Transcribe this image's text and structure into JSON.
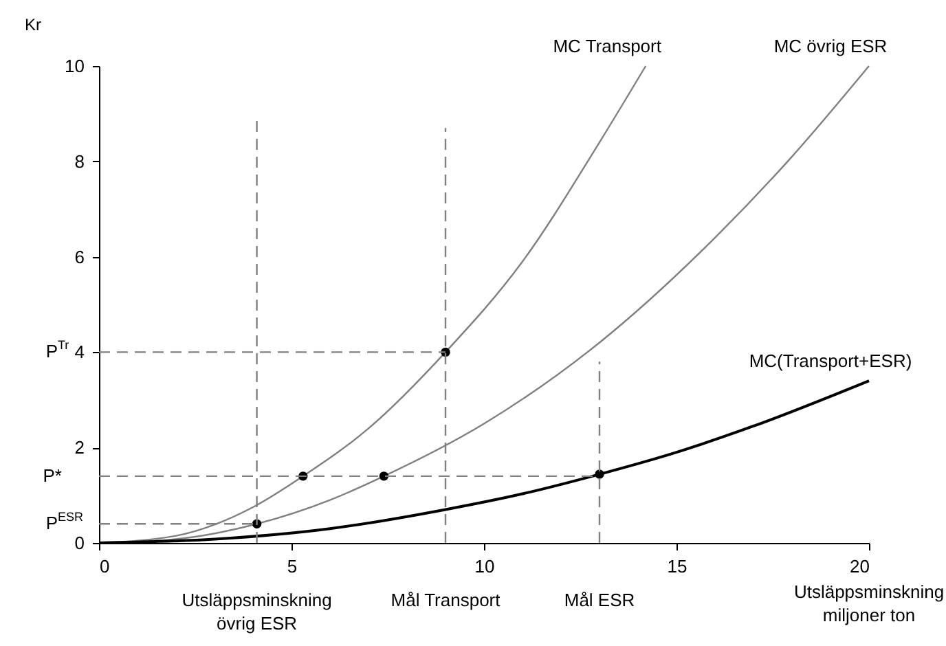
{
  "chart_data": {
    "type": "line",
    "xlabel": "Utsläppsminskning\nmiljoner ton",
    "ylabel": "Kr",
    "xlim": [
      0,
      20
    ],
    "ylim": [
      0,
      10
    ],
    "xticks": [
      0,
      5,
      10,
      15,
      20
    ],
    "yticks": [
      0,
      2,
      4,
      6,
      8,
      10
    ],
    "grid": false,
    "series": [
      {
        "name": "MC Transport",
        "color": "#808080",
        "marker": "none",
        "x": [
          0,
          2,
          4,
          5.3,
          7,
          9,
          11,
          13,
          14.2
        ],
        "values": [
          0,
          0.15,
          0.75,
          1.4,
          2.4,
          4,
          5.9,
          8.4,
          10
        ]
      },
      {
        "name": "MC övrig ESR",
        "color": "#808080",
        "marker": "none",
        "x": [
          0,
          2,
          4.1,
          6,
          7.4,
          10,
          13,
          16,
          18,
          20
        ],
        "values": [
          0,
          0.08,
          0.4,
          0.9,
          1.4,
          2.5,
          4.2,
          6.4,
          8.1,
          10
        ]
      },
      {
        "name": "MC(Transport+ESR)",
        "color": "#000000",
        "marker": "none",
        "x": [
          0,
          3,
          6,
          9,
          11,
          13,
          15,
          17,
          20
        ],
        "values": [
          0,
          0.08,
          0.3,
          0.7,
          1.03,
          1.44,
          1.9,
          2.45,
          3.4
        ]
      },
      {
        "type": "scatter",
        "color": "#000000",
        "marker": "circle",
        "x": [
          4.1,
          5.3,
          7.4,
          9,
          13
        ],
        "values": [
          0.4,
          1.4,
          1.4,
          4,
          1.44
        ]
      },
      {
        "color": "#808080",
        "line_style": "dashed",
        "marker": "none",
        "x": [
          4.1,
          4.1
        ],
        "values": [
          0,
          8.85
        ]
      },
      {
        "color": "#808080",
        "line_style": "dashed",
        "marker": "none",
        "x": [
          9,
          9
        ],
        "values": [
          0,
          8.7
        ]
      },
      {
        "color": "#808080",
        "line_style": "dashed",
        "marker": "none",
        "x": [
          13,
          13
        ],
        "values": [
          0,
          3.8
        ]
      },
      {
        "color": "#808080",
        "line_style": "dashed",
        "marker": "none",
        "x": [
          0,
          9
        ],
        "values": [
          4,
          4
        ]
      },
      {
        "color": "#808080",
        "line_style": "dashed",
        "marker": "none",
        "x": [
          0,
          13
        ],
        "values": [
          1.4,
          1.4
        ]
      },
      {
        "color": "#808080",
        "line_style": "dashed",
        "marker": "none",
        "x": [
          0,
          4.1
        ],
        "values": [
          0.4,
          0.4
        ]
      }
    ],
    "annotations": [
      {
        "text": "Utsläppsminskning\növrig ESR",
        "x": 4.1,
        "y": 0
      },
      {
        "text": "Mål  Transport",
        "x": 9,
        "y": 0
      },
      {
        "text": "Mål  ESR",
        "x": 13,
        "y": 0
      },
      {
        "text": "P$^{Tr}$",
        "x": 0,
        "y": 4
      },
      {
        "text": "P*",
        "x": 0,
        "y": 1.4
      },
      {
        "text": "P$^{ESR}$",
        "x": 0,
        "y": 0.4
      }
    ]
  }
}
